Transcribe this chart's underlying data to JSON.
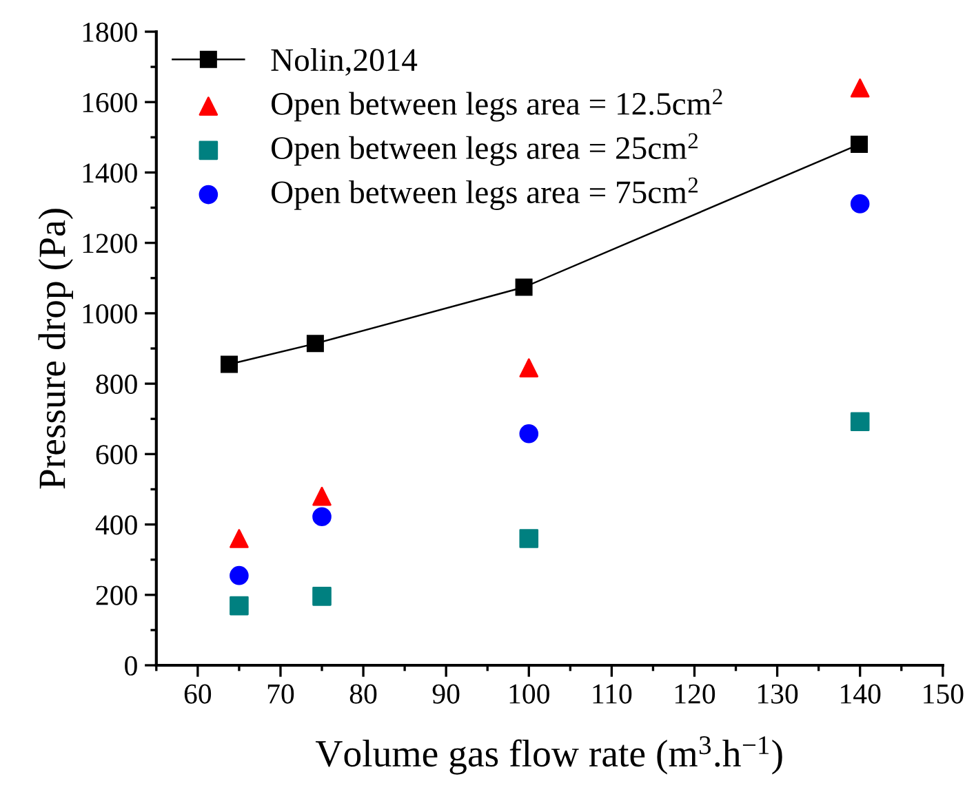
{
  "chart_data": {
    "type": "scatter",
    "xlabel": "Volume gas flow rate (m$^{3}$.h$^{−1}$)",
    "ylabel": "Pressure drop (Pa)",
    "xlim": [
      55,
      150
    ],
    "xticks": [
      60,
      70,
      80,
      90,
      100,
      110,
      120,
      130,
      140,
      150
    ],
    "ylim": [
      0,
      1800
    ],
    "yticks": [
      0,
      200,
      400,
      600,
      800,
      1000,
      1200,
      1400,
      1600,
      1800
    ],
    "grid": false,
    "legend": "top left",
    "series": [
      {
        "name": "Nolin,2014",
        "type": "line",
        "marker": "square",
        "color": "#000000",
        "x": [
          63.8,
          74.2,
          99.4,
          139.9
        ],
        "values": [
          855,
          914,
          1074,
          1480
        ]
      },
      {
        "name": "Open between legs area = 12.5cm$^{2}$",
        "marker": "triangle",
        "color": "#ff0000",
        "x": [
          65,
          75,
          100,
          140
        ],
        "values": [
          360,
          480,
          845,
          1640
        ]
      },
      {
        "name": "Open between legs area = 25cm$^{2}$",
        "marker": "square",
        "color": "#008080",
        "x": [
          65,
          75,
          100,
          140
        ],
        "values": [
          169,
          196,
          360,
          692
        ]
      },
      {
        "name": "Open between legs area = 75cm$^{2}$",
        "marker": "circle",
        "color": "#0000ff",
        "x": [
          65,
          75,
          100,
          140
        ],
        "values": [
          255,
          422,
          658,
          1311
        ]
      }
    ]
  }
}
